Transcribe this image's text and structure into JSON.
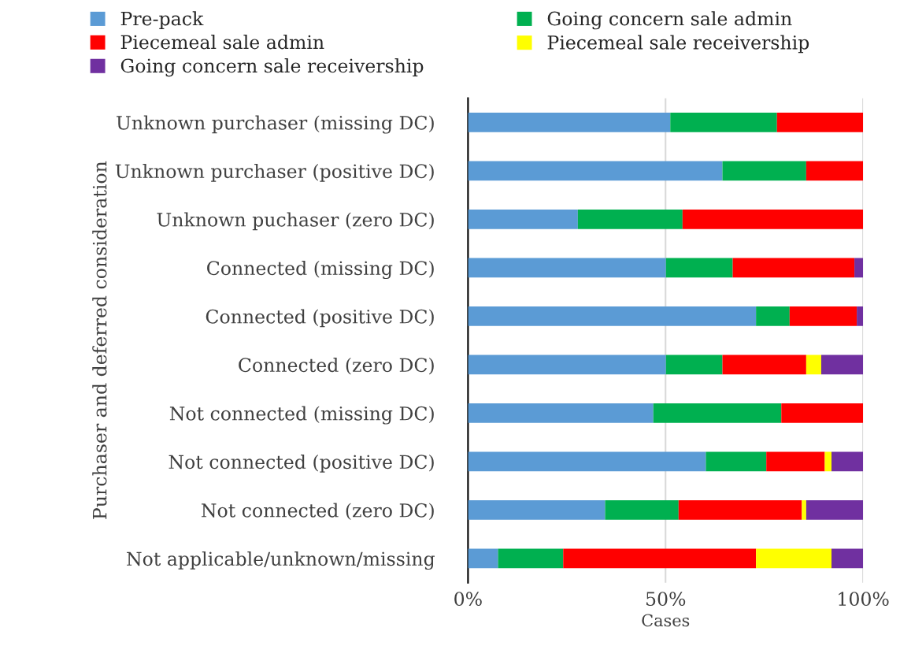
{
  "chart_data": {
    "type": "bar",
    "orientation": "horizontal",
    "stacked": true,
    "ylabel": "Purchaser and deferred consideration",
    "xlabel": "Cases",
    "categories": [
      "Unknown purchaser (missing DC)",
      "Unknown purchaser (positive DC)",
      "Unknown puchaser (zero DC)",
      "Connected (missing DC)",
      "Connected (positive DC)",
      "Connected (zero DC)",
      "Not connected (missing DC)",
      "Not connected (positive DC)",
      "Not connected (zero DC)",
      "Not applicable/unknown/missing"
    ],
    "series": [
      {
        "name": "Pre-pack",
        "color": "#5b9bd5",
        "values": [
          51.2,
          64.4,
          27.8,
          50.1,
          72.9,
          50.1,
          46.9,
          60.2,
          34.7,
          7.6
        ]
      },
      {
        "name": "Going concern sale admin",
        "color": "#00b050",
        "values": [
          27.0,
          21.2,
          26.5,
          16.9,
          8.5,
          14.3,
          32.4,
          15.3,
          18.6,
          16.5
        ]
      },
      {
        "name": "Piecemeal sale admin",
        "color": "#ff0000",
        "values": [
          21.8,
          14.4,
          45.7,
          30.8,
          17.0,
          21.2,
          20.7,
          14.8,
          31.2,
          48.8
        ]
      },
      {
        "name": "Piecemeal sale receivership",
        "color": "#ffff00",
        "values": [
          0,
          0,
          0,
          0,
          0,
          3.8,
          0,
          1.7,
          1.1,
          19.1
        ]
      },
      {
        "name": "Going concern sale receivership",
        "color": "#7030a0",
        "values": [
          0,
          0,
          0,
          2.2,
          1.6,
          10.6,
          0,
          8.0,
          14.4,
          8.0
        ]
      }
    ],
    "xlim": [
      0,
      100
    ],
    "xticks": [
      {
        "value": 0,
        "label": "0%"
      },
      {
        "value": 50,
        "label": "50%"
      },
      {
        "value": 100,
        "label": "100%"
      }
    ],
    "grid": "x",
    "legend": "top"
  }
}
